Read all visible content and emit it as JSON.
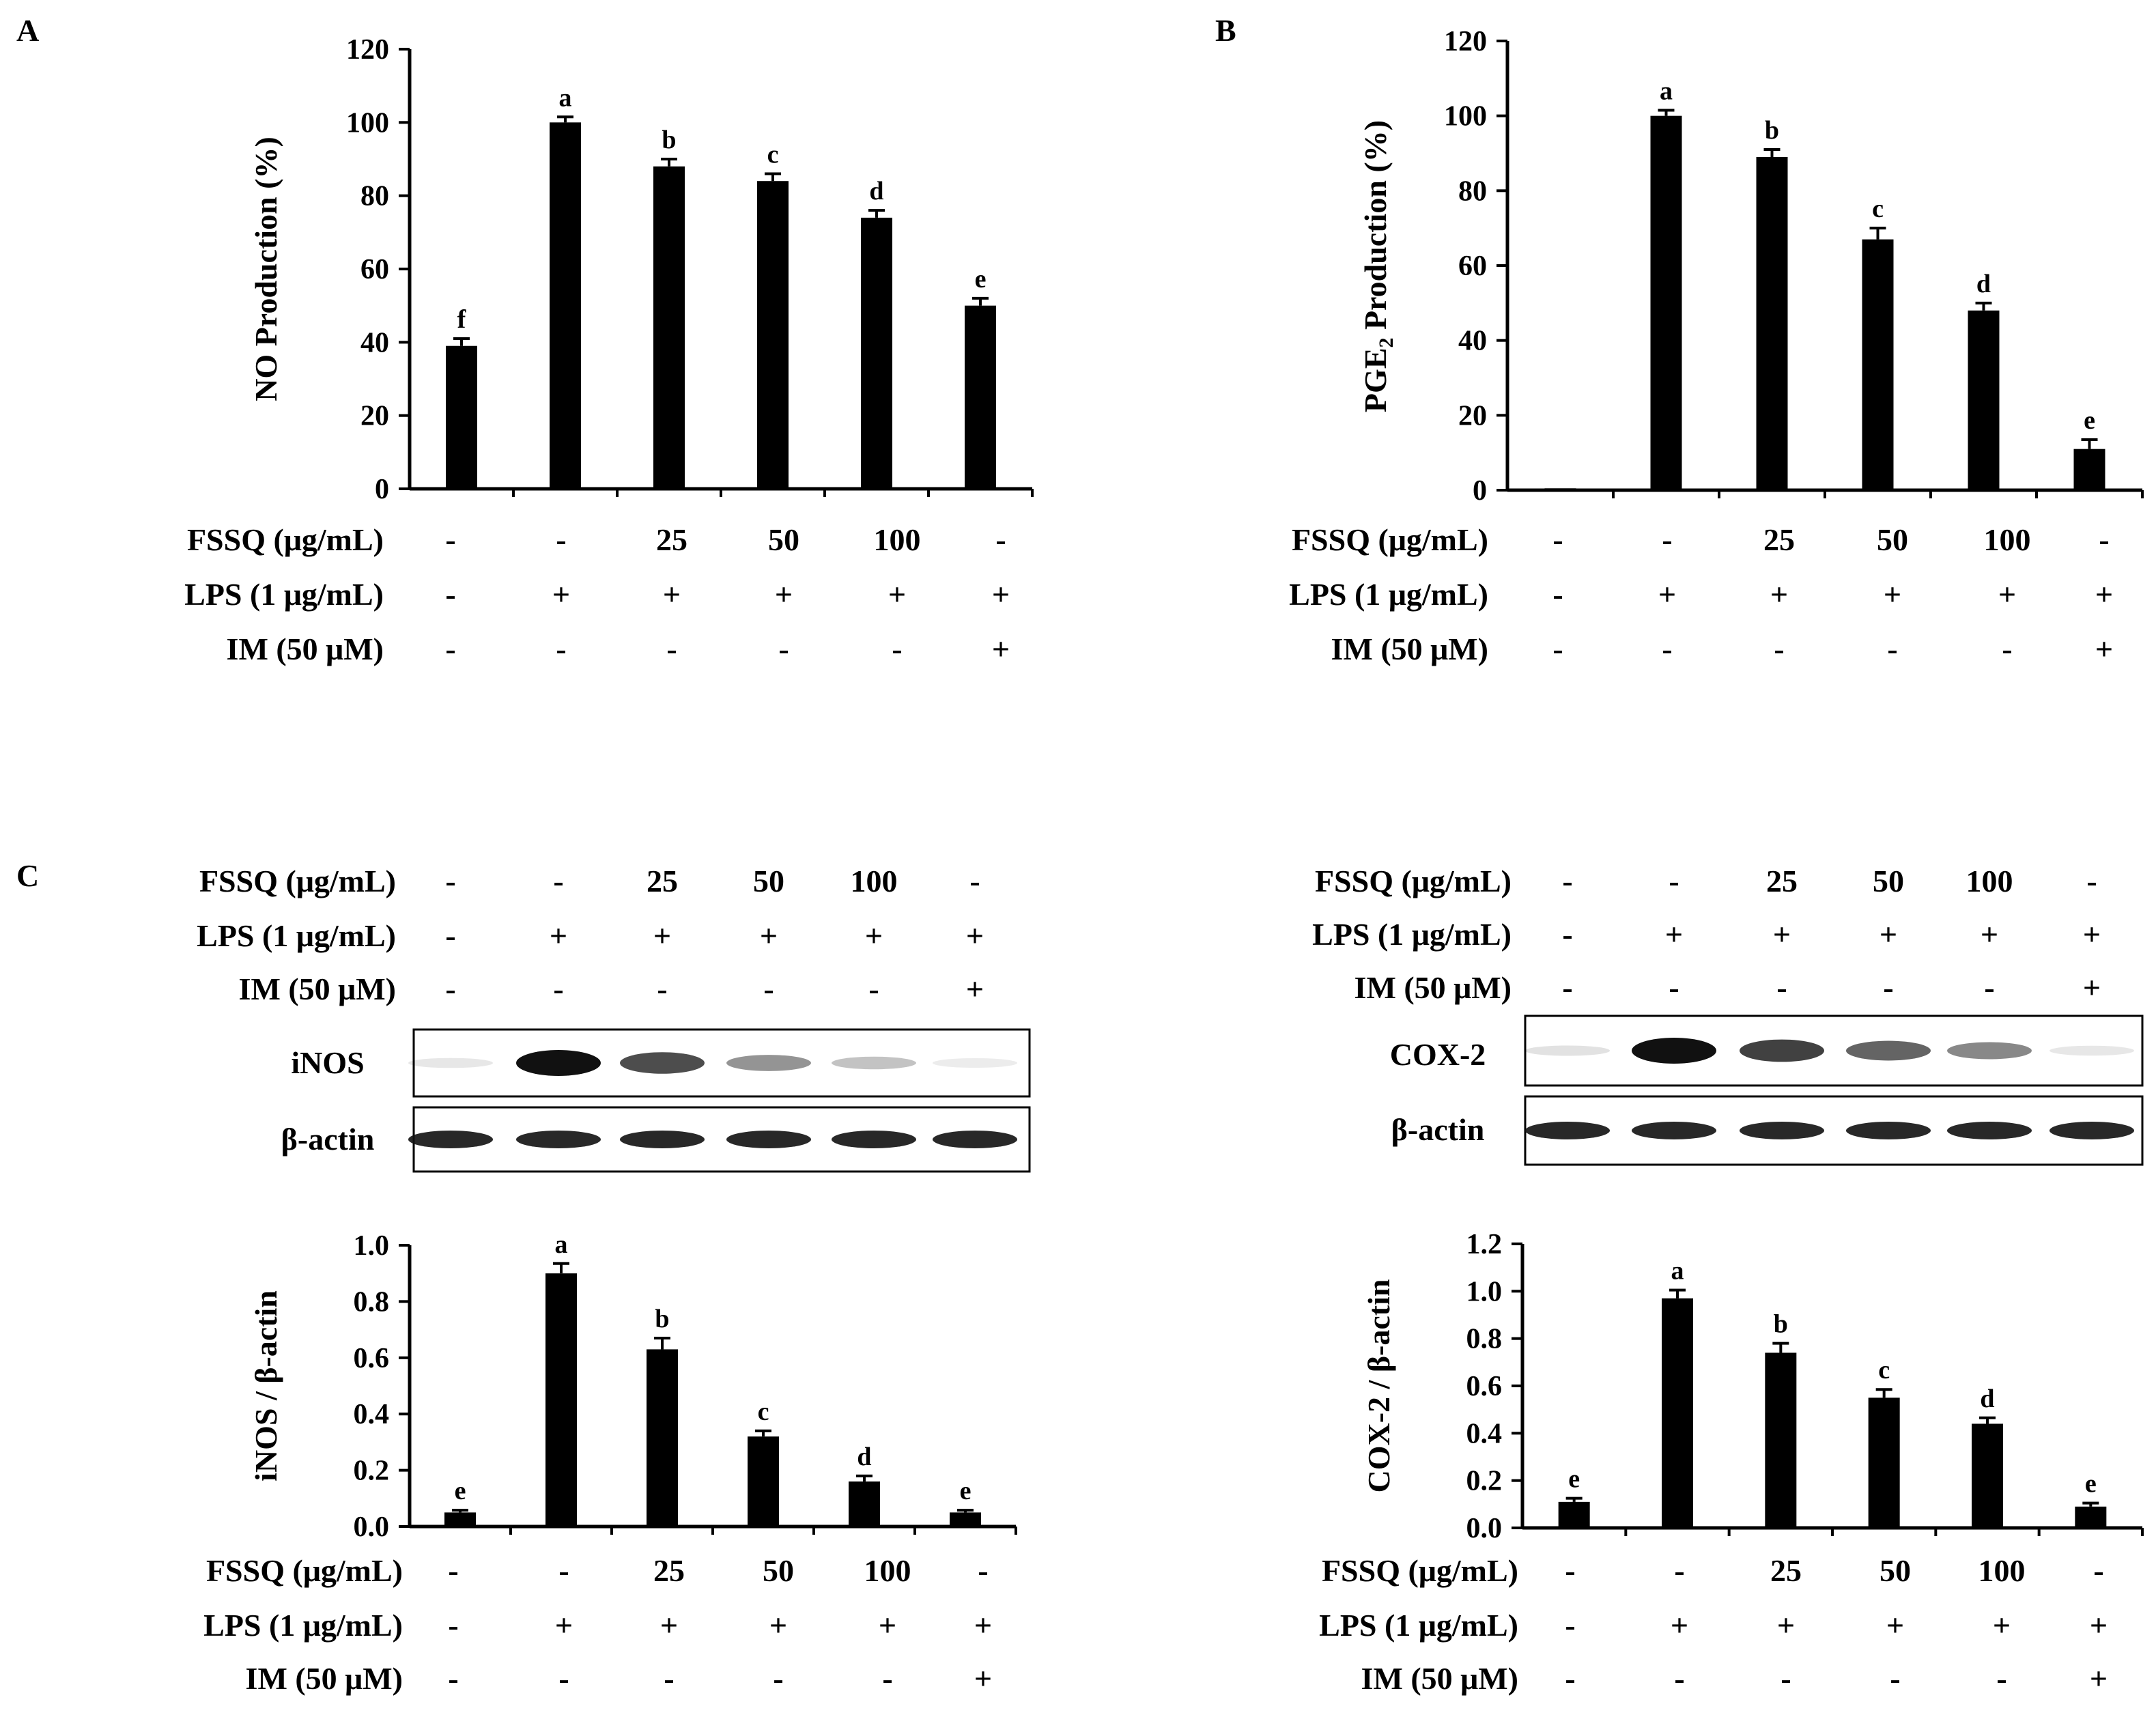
{
  "panel_labels": {
    "a": "A",
    "b": "B",
    "c": "C"
  },
  "condition_rows": {
    "labels": [
      "FSSQ  (μg/mL)",
      "LPS (1 μg/mL)",
      "IM (50 μM)"
    ],
    "fssq": [
      "-",
      "-",
      "25",
      "50",
      "100",
      "-"
    ],
    "lps": [
      "-",
      "+",
      "+",
      "+",
      "+",
      "+"
    ],
    "im": [
      "-",
      "-",
      "-",
      "-",
      "-",
      "+"
    ]
  },
  "blots": {
    "inos_label": "iNOS",
    "cox2_label": "COX-2",
    "actin_label": "β-actin",
    "inos_band_intensity": [
      0.1,
      1.0,
      0.75,
      0.45,
      0.25,
      0.08
    ],
    "cox2_band_intensity": [
      0.12,
      1.0,
      0.8,
      0.65,
      0.5,
      0.1
    ],
    "actin_band_intensity": [
      0.9,
      0.9,
      0.9,
      0.9,
      0.9,
      0.9
    ]
  },
  "chart_data": [
    {
      "type": "bar",
      "panel": "A",
      "categories": [
        "1",
        "2",
        "3",
        "4",
        "5",
        "6"
      ],
      "values": [
        39,
        100,
        88,
        84,
        74,
        50
      ],
      "errors": [
        2,
        1.5,
        2,
        2,
        2,
        2
      ],
      "sig_letters": [
        "f",
        "a",
        "b",
        "c",
        "d",
        "e"
      ],
      "title": "",
      "xlabel": "",
      "ylabel": "NO Production (%)",
      "ylim": [
        0,
        120
      ],
      "yticks": [
        "0",
        "20",
        "40",
        "60",
        "80",
        "100",
        "120"
      ]
    },
    {
      "type": "bar",
      "panel": "B",
      "categories": [
        "1",
        "2",
        "3",
        "4",
        "5",
        "6"
      ],
      "values": [
        0.5,
        100,
        89,
        67,
        48,
        11
      ],
      "errors": [
        0,
        1.5,
        2,
        3,
        2,
        2.5
      ],
      "sig_letters": [
        "",
        "a",
        "b",
        "c",
        "d",
        "e"
      ],
      "title": "",
      "xlabel": "",
      "ylabel_main": "PGE",
      "ylabel_sub": "2",
      "ylabel_rest": " Production (%)",
      "ylim": [
        0,
        120
      ],
      "yticks": [
        "0",
        "20",
        "40",
        "60",
        "80",
        "100",
        "120"
      ]
    },
    {
      "type": "bar",
      "panel": "C-left",
      "categories": [
        "1",
        "2",
        "3",
        "4",
        "5",
        "6"
      ],
      "values": [
        0.05,
        0.9,
        0.63,
        0.32,
        0.16,
        0.05
      ],
      "errors": [
        0.008,
        0.035,
        0.04,
        0.02,
        0.02,
        0.008
      ],
      "sig_letters": [
        "e",
        "a",
        "b",
        "c",
        "d",
        "e"
      ],
      "title": "",
      "xlabel": "",
      "ylabel": "iNOS / β-actin",
      "ylim": [
        0,
        1.0
      ],
      "yticks": [
        "0.0",
        "0.2",
        "0.4",
        "0.6",
        "0.8",
        "1.0"
      ]
    },
    {
      "type": "bar",
      "panel": "C-right",
      "categories": [
        "1",
        "2",
        "3",
        "4",
        "5",
        "6"
      ],
      "values": [
        0.11,
        0.97,
        0.74,
        0.55,
        0.44,
        0.09
      ],
      "errors": [
        0.015,
        0.035,
        0.04,
        0.035,
        0.025,
        0.015
      ],
      "sig_letters": [
        "e",
        "a",
        "b",
        "c",
        "d",
        "e"
      ],
      "title": "",
      "xlabel": "",
      "ylabel": "COX-2 / β-actin",
      "ylim": [
        0,
        1.2
      ],
      "yticks": [
        "0.0",
        "0.2",
        "0.4",
        "0.6",
        "0.8",
        "1.0",
        "1.2"
      ]
    }
  ]
}
